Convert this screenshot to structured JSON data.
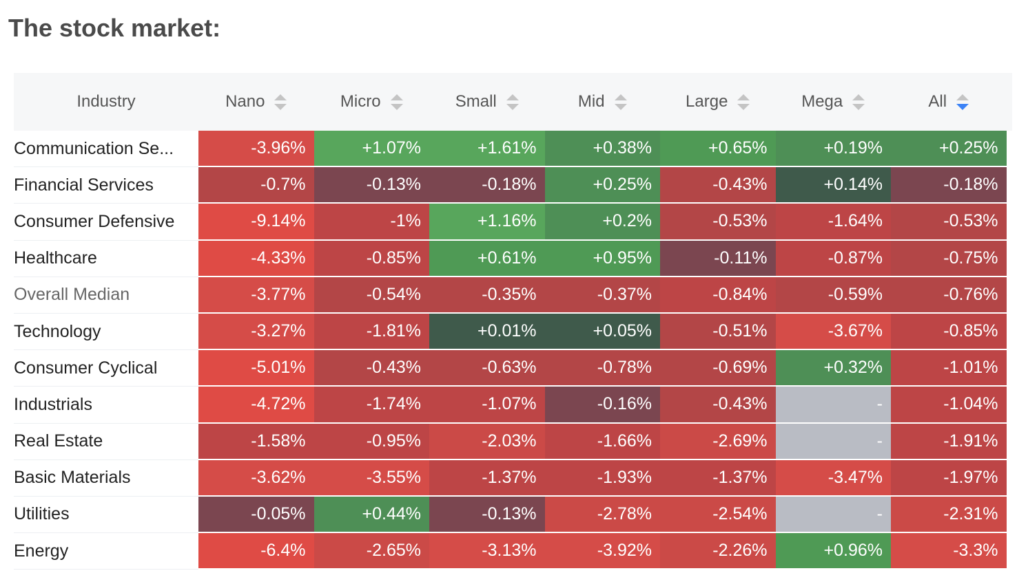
{
  "title": "The stock market:",
  "chart_data": {
    "type": "heatmap",
    "columns": [
      "Industry",
      "Nano",
      "Micro",
      "Small",
      "Mid",
      "Large",
      "Mega",
      "All"
    ],
    "sorted_column": "All",
    "rows": [
      {
        "industry": "Communication Se...",
        "values": [
          "-3.96%",
          "+1.07%",
          "+1.61%",
          "+0.38%",
          "+0.65%",
          "+0.19%",
          "+0.25%"
        ]
      },
      {
        "industry": "Financial Services",
        "values": [
          "-0.7%",
          "-0.13%",
          "-0.18%",
          "+0.25%",
          "-0.43%",
          "+0.14%",
          "-0.18%"
        ]
      },
      {
        "industry": "Consumer Defensive",
        "values": [
          "-9.14%",
          "-1%",
          "+1.16%",
          "+0.2%",
          "-0.53%",
          "-1.64%",
          "-0.53%"
        ]
      },
      {
        "industry": "Healthcare",
        "values": [
          "-4.33%",
          "-0.85%",
          "+0.61%",
          "+0.95%",
          "-0.11%",
          "-0.87%",
          "-0.75%"
        ]
      },
      {
        "industry": "Overall Median",
        "values": [
          "-3.77%",
          "-0.54%",
          "-0.35%",
          "-0.37%",
          "-0.84%",
          "-0.59%",
          "-0.76%"
        ]
      },
      {
        "industry": "Technology",
        "values": [
          "-3.27%",
          "-1.81%",
          "+0.01%",
          "+0.05%",
          "-0.51%",
          "-3.67%",
          "-0.85%"
        ]
      },
      {
        "industry": "Consumer Cyclical",
        "values": [
          "-5.01%",
          "-0.43%",
          "-0.63%",
          "-0.78%",
          "-0.69%",
          "+0.32%",
          "-1.01%"
        ]
      },
      {
        "industry": "Industrials",
        "values": [
          "-4.72%",
          "-1.74%",
          "-1.07%",
          "-0.16%",
          "-0.43%",
          "-",
          "-1.04%"
        ]
      },
      {
        "industry": "Real Estate",
        "values": [
          "-1.58%",
          "-0.95%",
          "-2.03%",
          "-1.66%",
          "-2.69%",
          "-",
          "-1.91%"
        ]
      },
      {
        "industry": "Basic Materials",
        "values": [
          "-3.62%",
          "-3.55%",
          "-1.37%",
          "-1.93%",
          "-1.37%",
          "-3.47%",
          "-1.97%"
        ]
      },
      {
        "industry": "Utilities",
        "values": [
          "-0.05%",
          "+0.44%",
          "-0.13%",
          "-2.78%",
          "-2.54%",
          "-",
          "-2.31%"
        ]
      },
      {
        "industry": "Energy",
        "values": [
          "-6.4%",
          "-2.65%",
          "-3.13%",
          "-3.92%",
          "-2.26%",
          "+0.96%",
          "-3.3%"
        ]
      }
    ]
  }
}
